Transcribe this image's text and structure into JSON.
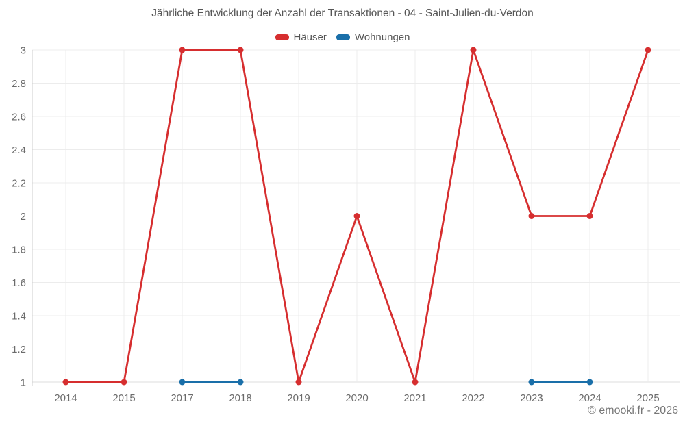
{
  "chart_data": {
    "type": "line",
    "title": "Jährliche Entwicklung der Anzahl der Transaktionen - 04 - Saint-Julien-du-Verdon",
    "categories": [
      "2014",
      "2015",
      "2017",
      "2018",
      "2019",
      "2020",
      "2021",
      "2022",
      "2023",
      "2024",
      "2025"
    ],
    "series": [
      {
        "name": "Häuser",
        "color": "#d62e2f",
        "values": [
          1,
          1,
          3,
          3,
          1,
          2,
          1,
          3,
          2,
          2,
          3
        ]
      },
      {
        "name": "Wohnungen",
        "color": "#1a6fa9",
        "values": [
          null,
          null,
          1,
          1,
          null,
          null,
          null,
          null,
          1,
          1,
          null
        ]
      }
    ],
    "xlabel": "",
    "ylabel": "",
    "ylim": [
      1,
      3
    ],
    "ytick_step": 0.2,
    "ytick_labels": [
      "1",
      "1.2",
      "1.4",
      "1.6",
      "1.8",
      "2",
      "2.2",
      "2.4",
      "2.6",
      "2.8",
      "3"
    ],
    "grid": "on",
    "legend_position": "top"
  },
  "watermark": "© emooki.fr - 2026",
  "colors": {
    "grid_line": "#ececec",
    "baseline": "#dddddd",
    "axis_line": "#cccccc",
    "tick_text": "#6b6b6b",
    "title_text": "#555555",
    "watermark_text": "#777777",
    "background": "#ffffff"
  }
}
